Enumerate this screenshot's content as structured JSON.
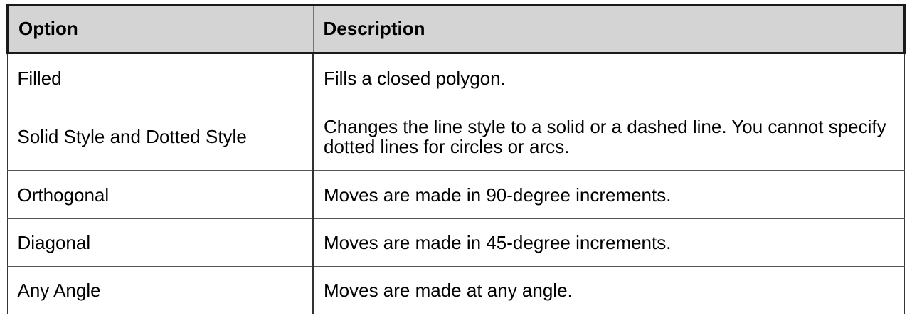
{
  "table": {
    "headers": [
      "Option",
      "Description"
    ],
    "rows": [
      {
        "option": "Filled",
        "description": "Fills a closed polygon."
      },
      {
        "option": "Solid Style and Dotted Style",
        "description": "Changes the line style to a solid or a dashed line. You cannot specify dotted lines for circles or arcs."
      },
      {
        "option": "Orthogonal",
        "description": "Moves are made in 90-degree increments."
      },
      {
        "option": "Diagonal",
        "description": "Moves are made in 45-degree increments."
      },
      {
        "option": "Any Angle",
        "description": "Moves are made at any angle."
      }
    ]
  },
  "colors": {
    "header_background": "#d4d4d4",
    "border": "#1a1a1a",
    "text": "#000000"
  }
}
